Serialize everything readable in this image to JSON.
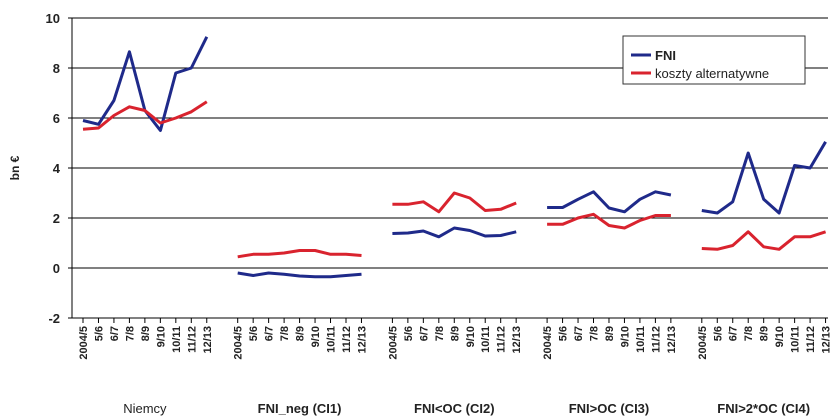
{
  "chart_data": {
    "type": "line",
    "ylabel": "bn €",
    "ylim": [
      -2,
      10
    ],
    "yticks": [
      "-2",
      "0",
      "2",
      "4",
      "6",
      "8",
      "10"
    ],
    "grid": true,
    "legend_position": "top-right",
    "x": [
      "2004/5",
      "5/6",
      "6/7",
      "7/8",
      "8/9",
      "9/10",
      "10/11",
      "11/12",
      "12/13"
    ],
    "group_labels": [
      "Niemcy",
      "FNI_neg (CI1)",
      "FNI<OC (CI2)",
      "FNI>OC (CI3)",
      "FNI>2*OC (CI4)"
    ],
    "series": [
      {
        "name": "FNI",
        "color": "#1f2a8a",
        "groups": [
          [
            5.9,
            5.75,
            6.7,
            8.65,
            6.3,
            5.5,
            7.8,
            8.0,
            9.25
          ],
          [
            -0.2,
            -0.3,
            -0.2,
            -0.25,
            -0.32,
            -0.35,
            -0.35,
            -0.3,
            -0.25
          ],
          [
            1.38,
            1.4,
            1.48,
            1.25,
            1.6,
            1.5,
            1.28,
            1.3,
            1.45
          ],
          [
            2.42,
            2.42,
            2.75,
            3.05,
            2.4,
            2.25,
            2.75,
            3.05,
            2.92
          ],
          [
            2.3,
            2.2,
            2.65,
            4.6,
            2.75,
            2.2,
            4.1,
            4.0,
            5.05
          ]
        ]
      },
      {
        "name": "koszty alternatywne",
        "color": "#d9232e",
        "groups": [
          [
            5.55,
            5.6,
            6.1,
            6.45,
            6.3,
            5.8,
            6.0,
            6.25,
            6.65
          ],
          [
            0.45,
            0.55,
            0.55,
            0.6,
            0.7,
            0.7,
            0.55,
            0.55,
            0.5
          ],
          [
            2.55,
            2.55,
            2.65,
            2.25,
            3.0,
            2.8,
            2.3,
            2.35,
            2.6
          ],
          [
            1.75,
            1.75,
            2.0,
            2.15,
            1.7,
            1.6,
            1.9,
            2.1,
            2.1
          ],
          [
            0.78,
            0.75,
            0.9,
            1.45,
            0.85,
            0.75,
            1.25,
            1.25,
            1.45
          ]
        ]
      }
    ]
  }
}
